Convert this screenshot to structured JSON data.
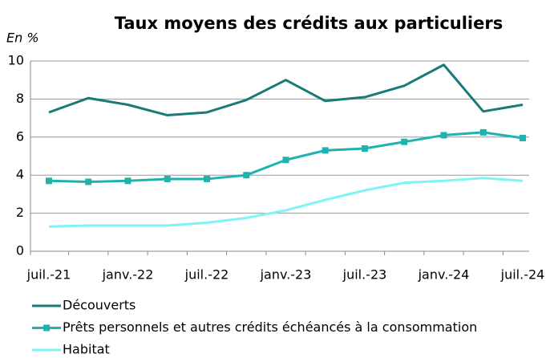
{
  "chart_data": {
    "type": "line",
    "title": "Taux moyens des crédits aux particuliers",
    "y_label": "En %",
    "categories": [
      "juil.-21",
      null,
      "janv.-22",
      null,
      "juil.-22",
      null,
      "janv.-23",
      null,
      "juil.-23",
      null,
      "janv.-24",
      null,
      "juil.-24"
    ],
    "series": [
      {
        "name": "Découverts",
        "color": "#1a7a78",
        "values": [
          7.3,
          8.05,
          7.7,
          7.15,
          7.3,
          7.95,
          9.0,
          7.9,
          8.1,
          8.7,
          9.8,
          7.35,
          7.7
        ]
      },
      {
        "name": "Prêts personnels et autres crédits échéancés à la consommation",
        "color": "#1fb3b0",
        "marker": "square",
        "values": [
          3.7,
          3.65,
          3.7,
          3.8,
          3.8,
          4.0,
          4.8,
          5.3,
          5.4,
          5.75,
          6.1,
          6.25,
          5.95
        ]
      },
      {
        "name": "Habitat",
        "color": "#7ff3f5",
        "values": [
          1.3,
          1.35,
          1.35,
          1.35,
          1.5,
          1.75,
          2.15,
          2.7,
          3.2,
          3.6,
          3.7,
          3.85,
          3.7
        ]
      }
    ],
    "ylim": [
      0,
      10
    ],
    "yticks": [
      0,
      2,
      4,
      6,
      8,
      10
    ],
    "grid": true,
    "legend": "bottom"
  }
}
